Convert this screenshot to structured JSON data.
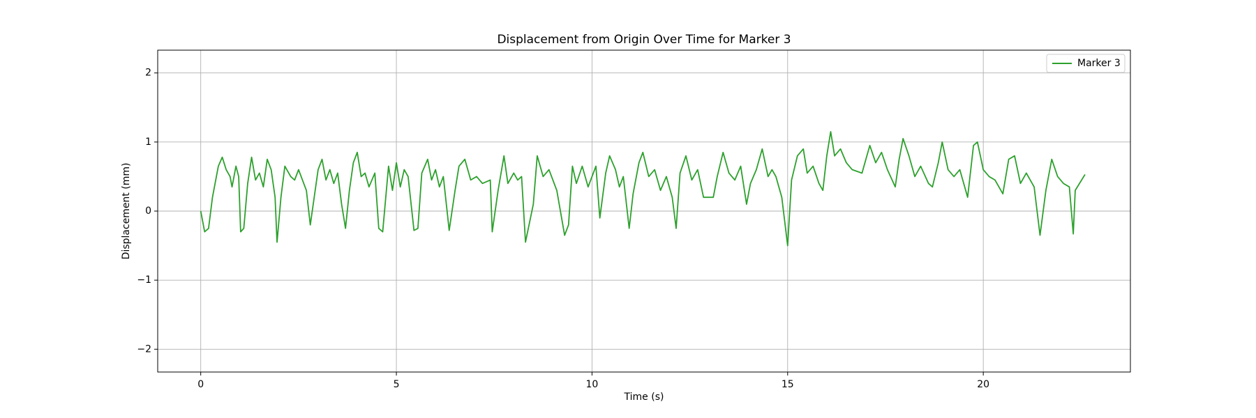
{
  "chart_data": {
    "type": "line",
    "title": "Displacement from Origin Over Time for Marker 3",
    "x_label": "Time (s)",
    "y_label": "Displacement (mm)",
    "x": [
      0,
      0.1,
      0.2,
      0.3,
      0.45,
      0.55,
      0.65,
      0.75,
      0.8,
      0.9,
      0.97,
      1.02,
      1.1,
      1.2,
      1.3,
      1.4,
      1.5,
      1.6,
      1.7,
      1.8,
      1.9,
      1.95,
      2.05,
      2.15,
      2.3,
      2.4,
      2.5,
      2.6,
      2.7,
      2.8,
      2.9,
      3.0,
      3.1,
      3.2,
      3.3,
      3.4,
      3.5,
      3.6,
      3.7,
      3.8,
      3.9,
      4.0,
      4.1,
      4.2,
      4.3,
      4.45,
      4.55,
      4.65,
      4.8,
      4.9,
      5.0,
      5.1,
      5.2,
      5.3,
      5.45,
      5.55,
      5.65,
      5.8,
      5.9,
      6.0,
      6.1,
      6.2,
      6.35,
      6.5,
      6.6,
      6.75,
      6.9,
      7.05,
      7.2,
      7.4,
      7.45,
      7.6,
      7.75,
      7.85,
      8.0,
      8.1,
      8.2,
      8.3,
      8.5,
      8.6,
      8.75,
      8.9,
      9.0,
      9.1,
      9.3,
      9.4,
      9.5,
      9.6,
      9.75,
      9.9,
      10.0,
      10.1,
      10.2,
      10.35,
      10.45,
      10.6,
      10.7,
      10.8,
      10.95,
      11.05,
      11.2,
      11.3,
      11.45,
      11.6,
      11.75,
      11.9,
      12.05,
      12.15,
      12.25,
      12.4,
      12.55,
      12.7,
      12.85,
      13.1,
      13.2,
      13.35,
      13.5,
      13.65,
      13.8,
      13.95,
      14.05,
      14.2,
      14.35,
      14.5,
      14.6,
      14.7,
      14.85,
      15.0,
      15.1,
      15.25,
      15.4,
      15.5,
      15.65,
      15.8,
      15.9,
      16.0,
      16.1,
      16.2,
      16.35,
      16.5,
      16.65,
      16.9,
      17.0,
      17.1,
      17.25,
      17.4,
      17.55,
      17.75,
      17.85,
      17.95,
      18.1,
      18.25,
      18.4,
      18.6,
      18.7,
      18.85,
      18.95,
      19.1,
      19.25,
      19.4,
      19.6,
      19.75,
      19.85,
      20.0,
      20.15,
      20.3,
      20.5,
      20.65,
      20.8,
      20.95,
      21.1,
      21.3,
      21.45,
      21.6,
      21.75,
      21.9,
      22.05,
      22.2,
      22.3,
      22.35,
      22.6
    ],
    "series": [
      {
        "name": "Marker 3",
        "color": "#2ca02c",
        "values": [
          0.0,
          -0.3,
          -0.25,
          0.2,
          0.65,
          0.78,
          0.6,
          0.5,
          0.35,
          0.65,
          0.5,
          -0.3,
          -0.25,
          0.4,
          0.78,
          0.45,
          0.55,
          0.35,
          0.75,
          0.6,
          0.2,
          -0.45,
          0.2,
          0.65,
          0.5,
          0.45,
          0.6,
          0.45,
          0.3,
          -0.2,
          0.2,
          0.6,
          0.75,
          0.45,
          0.6,
          0.4,
          0.55,
          0.1,
          -0.25,
          0.3,
          0.7,
          0.85,
          0.5,
          0.55,
          0.35,
          0.55,
          -0.25,
          -0.3,
          0.65,
          0.3,
          0.7,
          0.35,
          0.6,
          0.5,
          -0.28,
          -0.25,
          0.55,
          0.75,
          0.45,
          0.6,
          0.35,
          0.5,
          -0.28,
          0.3,
          0.65,
          0.75,
          0.45,
          0.5,
          0.4,
          0.45,
          -0.3,
          0.3,
          0.8,
          0.4,
          0.55,
          0.45,
          0.5,
          -0.45,
          0.1,
          0.8,
          0.5,
          0.6,
          0.45,
          0.3,
          -0.35,
          -0.2,
          0.65,
          0.4,
          0.65,
          0.35,
          0.5,
          0.65,
          -0.1,
          0.55,
          0.8,
          0.6,
          0.35,
          0.5,
          -0.25,
          0.25,
          0.7,
          0.85,
          0.5,
          0.6,
          0.3,
          0.5,
          0.2,
          -0.25,
          0.55,
          0.8,
          0.45,
          0.6,
          0.2,
          0.2,
          0.5,
          0.85,
          0.55,
          0.45,
          0.65,
          0.1,
          0.4,
          0.6,
          0.9,
          0.5,
          0.6,
          0.5,
          0.2,
          -0.5,
          0.45,
          0.8,
          0.9,
          0.55,
          0.65,
          0.4,
          0.3,
          0.8,
          1.15,
          0.8,
          0.9,
          0.7,
          0.6,
          0.55,
          0.75,
          0.95,
          0.7,
          0.85,
          0.6,
          0.35,
          0.75,
          1.05,
          0.8,
          0.5,
          0.65,
          0.4,
          0.35,
          0.7,
          1.0,
          0.6,
          0.5,
          0.6,
          0.2,
          0.95,
          1.0,
          0.6,
          0.5,
          0.45,
          0.25,
          0.75,
          0.8,
          0.4,
          0.55,
          0.35,
          -0.35,
          0.3,
          0.75,
          0.5,
          0.4,
          0.35,
          -0.33,
          0.3,
          0.53
        ]
      }
    ],
    "xlim": [
      -1.1,
      23.76
    ],
    "ylim": [
      -2.33,
      2.33
    ],
    "xticks": [
      0,
      5,
      10,
      15,
      20
    ],
    "yticks": [
      {
        "value": -2,
        "label": "−2"
      },
      {
        "value": -1,
        "label": "−1"
      },
      0,
      1,
      2
    ],
    "grid": true,
    "legend": "upper right"
  }
}
